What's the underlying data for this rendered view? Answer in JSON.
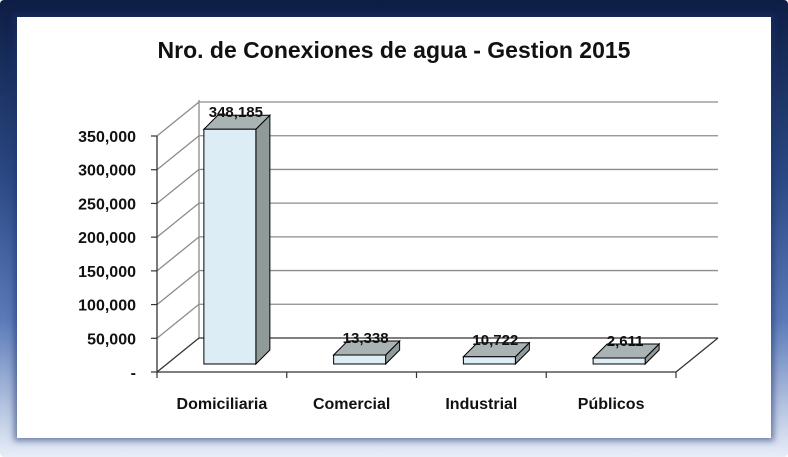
{
  "chart_data": {
    "type": "bar",
    "title": "Nro. de Conexiones de agua - Gestion 2015",
    "categories": [
      "Domiciliaria",
      "Comercial",
      "Industrial",
      "Públicos"
    ],
    "values": [
      348185,
      13338,
      10722,
      2611
    ],
    "value_labels": [
      "348,185",
      "13,338",
      "10,722",
      "2,611"
    ],
    "ylim": [
      0,
      350000
    ],
    "yticks": [
      0,
      50000,
      100000,
      150000,
      200000,
      250000,
      300000,
      350000
    ],
    "ytick_labels": [
      "-",
      "50,000",
      "100,000",
      "150,000",
      "200,000",
      "250,000",
      "300,000",
      "350,000"
    ],
    "grid": true,
    "legend": "none",
    "colors": {
      "bar_front": "#dcedf6",
      "bar_side": "#8f9a9b",
      "bar_top": "#a9b3b4",
      "bar_stroke": "#000000",
      "grid": "#8c8c8c"
    }
  }
}
